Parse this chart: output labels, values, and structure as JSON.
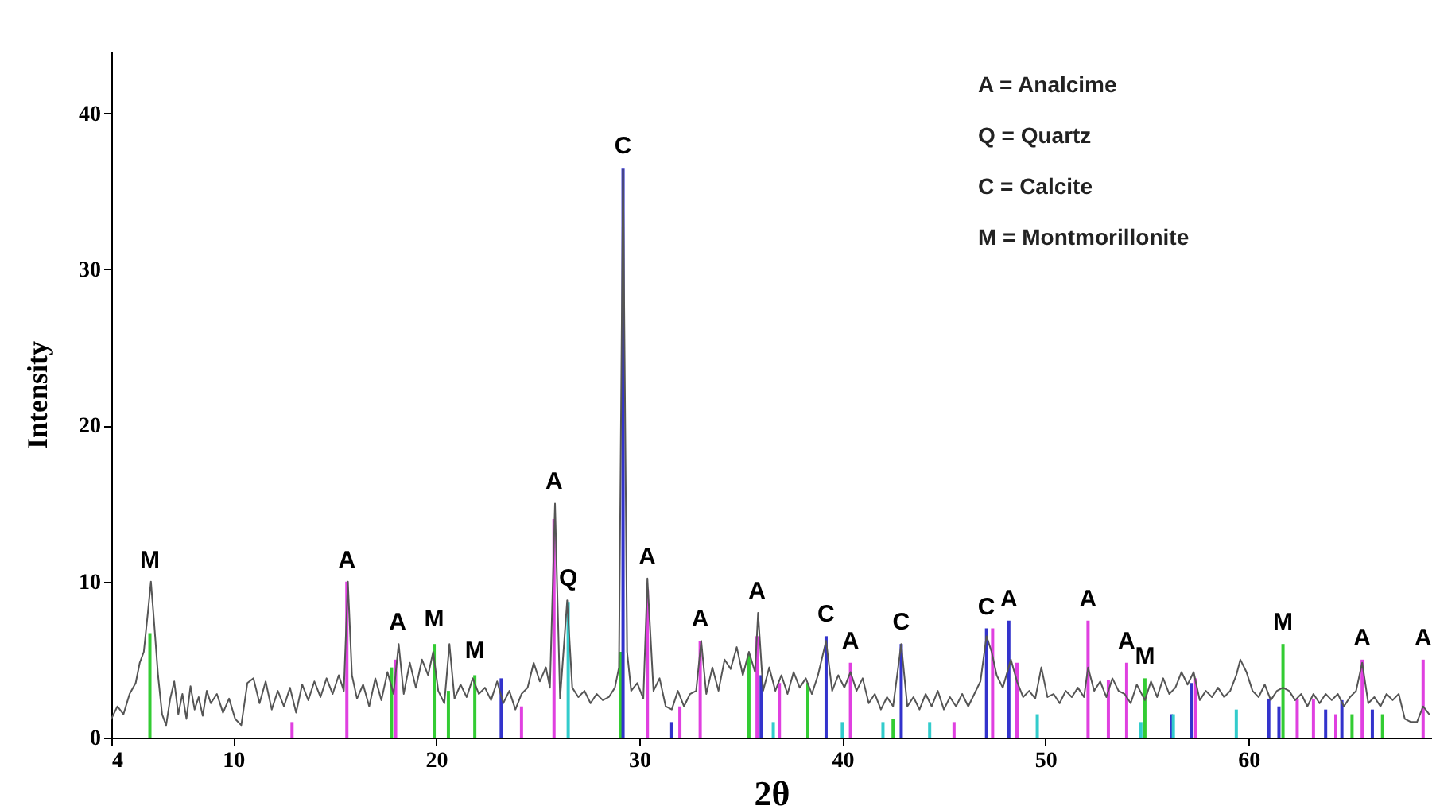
{
  "chart_data": {
    "type": "line",
    "xlabel": "2θ",
    "ylabel": "Intensity",
    "xlim": [
      4,
      69
    ],
    "ylim": [
      0,
      44
    ],
    "xticks": [
      4,
      10,
      20,
      30,
      40,
      50,
      60
    ],
    "yticks": [
      0,
      10,
      20,
      30,
      40
    ],
    "grid": false,
    "marker": "none",
    "line_style": "solid",
    "series": [
      {
        "color": "#555555",
        "x": [
          4.0,
          4.3,
          4.6,
          4.9,
          5.2,
          5.4,
          5.6,
          5.8,
          5.95,
          6.1,
          6.3,
          6.5,
          6.7,
          6.9,
          7.1,
          7.3,
          7.5,
          7.7,
          7.9,
          8.1,
          8.3,
          8.5,
          8.7,
          8.9,
          9.2,
          9.5,
          9.8,
          10.1,
          10.4,
          10.7,
          11.0,
          11.3,
          11.6,
          11.9,
          12.2,
          12.5,
          12.8,
          13.1,
          13.4,
          13.7,
          14.0,
          14.3,
          14.6,
          14.9,
          15.2,
          15.45,
          15.65,
          15.85,
          16.1,
          16.4,
          16.7,
          17.0,
          17.3,
          17.6,
          17.9,
          18.15,
          18.4,
          18.7,
          19.0,
          19.3,
          19.6,
          19.85,
          20.1,
          20.4,
          20.65,
          20.9,
          21.2,
          21.5,
          21.8,
          22.1,
          22.4,
          22.7,
          23.0,
          23.3,
          23.6,
          23.9,
          24.2,
          24.5,
          24.8,
          25.1,
          25.4,
          25.6,
          25.85,
          26.1,
          26.45,
          26.7,
          27.0,
          27.3,
          27.6,
          27.9,
          28.2,
          28.5,
          28.8,
          29.0,
          29.2,
          29.4,
          29.6,
          29.9,
          30.2,
          30.4,
          30.7,
          31.0,
          31.3,
          31.6,
          31.9,
          32.2,
          32.5,
          32.8,
          33.05,
          33.3,
          33.6,
          33.9,
          34.2,
          34.5,
          34.8,
          35.1,
          35.4,
          35.7,
          35.85,
          36.1,
          36.4,
          36.7,
          37.0,
          37.3,
          37.6,
          37.9,
          38.2,
          38.5,
          38.8,
          39.2,
          39.5,
          39.8,
          40.1,
          40.4,
          40.7,
          41.0,
          41.3,
          41.6,
          41.9,
          42.2,
          42.5,
          42.9,
          43.2,
          43.5,
          43.8,
          44.1,
          44.4,
          44.7,
          45.0,
          45.3,
          45.6,
          45.9,
          46.2,
          46.5,
          46.8,
          47.1,
          47.35,
          47.6,
          47.9,
          48.3,
          48.6,
          48.9,
          49.2,
          49.5,
          49.8,
          50.1,
          50.4,
          50.7,
          51.0,
          51.3,
          51.6,
          51.9,
          52.1,
          52.4,
          52.7,
          53.0,
          53.3,
          53.6,
          53.9,
          54.2,
          54.5,
          54.9,
          55.2,
          55.5,
          55.8,
          56.1,
          56.4,
          56.7,
          57.0,
          57.3,
          57.6,
          57.9,
          58.2,
          58.5,
          58.8,
          59.1,
          59.4,
          59.6,
          59.9,
          60.2,
          60.5,
          60.8,
          61.1,
          61.4,
          61.7,
          62.0,
          62.3,
          62.6,
          62.9,
          63.2,
          63.5,
          63.8,
          64.1,
          64.4,
          64.7,
          65.0,
          65.3,
          65.6,
          65.9,
          66.2,
          66.5,
          66.8,
          67.1,
          67.4,
          67.7,
          68.0,
          68.3,
          68.6,
          68.9
        ],
        "values": [
          1.2,
          2.0,
          1.5,
          2.8,
          3.5,
          4.8,
          5.5,
          8,
          10,
          7.5,
          4,
          1.5,
          0.8,
          2.5,
          3.6,
          1.5,
          2.8,
          1.2,
          3.3,
          1.8,
          2.6,
          1.4,
          3.0,
          2.2,
          2.8,
          1.6,
          2.5,
          1.2,
          0.8,
          3.5,
          3.8,
          2.2,
          3.6,
          1.8,
          3.0,
          2.0,
          3.2,
          1.6,
          3.4,
          2.4,
          3.6,
          2.6,
          3.8,
          2.8,
          4.0,
          3.0,
          10,
          4,
          2.5,
          3.4,
          2.0,
          3.8,
          2.4,
          4.2,
          2.8,
          6,
          2.8,
          4.8,
          3.2,
          5.0,
          4.0,
          5.5,
          3.0,
          2.2,
          6.0,
          2.5,
          3.4,
          2.6,
          3.8,
          2.8,
          3.2,
          2.4,
          3.6,
          2.2,
          3.0,
          1.8,
          2.8,
          3.2,
          4.8,
          3.6,
          4.5,
          3.2,
          15,
          2.5,
          8.8,
          3.2,
          2.6,
          3.0,
          2.2,
          2.8,
          2.4,
          2.6,
          3.2,
          4.5,
          36.4,
          5.5,
          3.0,
          3.5,
          2.5,
          10.2,
          3.0,
          3.8,
          2.0,
          1.8,
          3.0,
          2.0,
          2.8,
          3.0,
          6.2,
          2.8,
          4.5,
          3.0,
          5.0,
          4.4,
          5.8,
          4.0,
          5.5,
          4.2,
          8.0,
          3.0,
          4.5,
          3.0,
          4.0,
          2.8,
          4.2,
          3.2,
          3.8,
          2.8,
          4.0,
          6.2,
          3.0,
          4.0,
          3.2,
          4.2,
          3.0,
          3.8,
          2.2,
          2.8,
          1.8,
          2.6,
          2.0,
          6.0,
          2.0,
          2.6,
          1.8,
          2.8,
          2.0,
          3.0,
          1.8,
          2.6,
          2.0,
          2.8,
          2.0,
          2.8,
          3.6,
          6.5,
          5.5,
          4.0,
          3.2,
          5.0,
          3.6,
          2.6,
          3.0,
          2.5,
          4.5,
          2.6,
          2.8,
          2.2,
          3.0,
          2.6,
          3.2,
          2.6,
          4.5,
          3.0,
          3.6,
          2.6,
          3.8,
          3.0,
          2.8,
          2.2,
          3.4,
          2.4,
          3.6,
          2.6,
          3.8,
          2.8,
          3.2,
          4.2,
          3.4,
          4.2,
          2.4,
          3.0,
          2.6,
          3.2,
          2.6,
          3.0,
          4.0,
          5.0,
          4.2,
          3.0,
          2.6,
          3.4,
          2.4,
          3.0,
          3.2,
          3.0,
          2.4,
          2.8,
          2.0,
          2.8,
          2.2,
          2.8,
          2.4,
          2.8,
          2.0,
          2.6,
          3.0,
          4.8,
          2.2,
          2.6,
          2.0,
          2.8,
          2.4,
          2.8,
          1.2,
          1.0,
          1.0,
          2.0,
          1.5
        ]
      },
      {
        "type": "bar",
        "color": "#33cc33",
        "x": [
          5.9,
          17.8,
          19.9,
          20.6,
          21.9,
          29.1,
          35.4,
          38.3,
          42.5,
          48.2,
          54.9,
          61.7,
          65.1,
          66.6
        ],
        "values": [
          6.7,
          4.5,
          6,
          3,
          4,
          5.5,
          5.3,
          3.5,
          1.2,
          null,
          3.8,
          6,
          1.5,
          1.5
        ]
      },
      {
        "type": "bar",
        "color": "#e040e0",
        "x": [
          12.9,
          15.6,
          18.0,
          24.2,
          25.8,
          30.4,
          32.0,
          33.0,
          35.8,
          36.9,
          40.4,
          45.5,
          47.4,
          48.6,
          52.1,
          53.1,
          54.0,
          57.4,
          62.4,
          63.2,
          64.3,
          65.6,
          68.6
        ],
        "values": [
          1,
          10,
          5,
          2,
          14,
          9.5,
          2,
          6.2,
          6.5,
          3.5,
          4.8,
          1,
          7,
          4.8,
          7.5,
          3.7,
          4.8,
          3.8,
          2.5,
          2.5,
          1.5,
          5,
          5
        ]
      },
      {
        "type": "bar",
        "color": "#3333cc",
        "x": [
          23.2,
          29.2,
          31.6,
          36.0,
          39.2,
          42.9,
          47.1,
          48.2,
          56.2,
          57.2,
          61.0,
          61.5,
          63.8,
          64.6,
          66.1
        ],
        "values": [
          3.8,
          36.5,
          1,
          4,
          6.5,
          6,
          7,
          7.5,
          1.5,
          3.5,
          2.5,
          2,
          1.8,
          2.4,
          1.8
        ]
      },
      {
        "type": "bar",
        "color": "#33cccc",
        "x": [
          26.5,
          36.6,
          40.0,
          42.0,
          44.3,
          49.6,
          54.7,
          56.3,
          59.4
        ],
        "values": [
          8.7,
          1,
          1,
          1,
          1,
          1.5,
          1,
          1.5,
          1.8
        ]
      }
    ],
    "annotations": [
      {
        "text": "M",
        "x": 5.9,
        "y": 10
      },
      {
        "text": "A",
        "x": 15.6,
        "y": 10
      },
      {
        "text": "A",
        "x": 18.1,
        "y": 6
      },
      {
        "text": "M",
        "x": 19.9,
        "y": 6.2
      },
      {
        "text": "M",
        "x": 21.9,
        "y": 4.2
      },
      {
        "text": "A",
        "x": 25.8,
        "y": 15
      },
      {
        "text": "Q",
        "x": 26.5,
        "y": 8.8
      },
      {
        "text": "C",
        "x": 29.2,
        "y": 36.5
      },
      {
        "text": "A",
        "x": 30.4,
        "y": 10.2
      },
      {
        "text": "A",
        "x": 33.0,
        "y": 6.2
      },
      {
        "text": "A",
        "x": 35.8,
        "y": 8
      },
      {
        "text": "C",
        "x": 39.2,
        "y": 6.5
      },
      {
        "text": "A",
        "x": 40.4,
        "y": 4.8
      },
      {
        "text": "C",
        "x": 42.9,
        "y": 6
      },
      {
        "text": "C",
        "x": 47.1,
        "y": 7
      },
      {
        "text": "A",
        "x": 48.2,
        "y": 7.5
      },
      {
        "text": "A",
        "x": 52.1,
        "y": 7.5
      },
      {
        "text": "A",
        "x": 54.0,
        "y": 4.8
      },
      {
        "text": "M",
        "x": 54.9,
        "y": 3.8
      },
      {
        "text": "M",
        "x": 61.7,
        "y": 6
      },
      {
        "text": "A",
        "x": 65.6,
        "y": 5
      },
      {
        "text": "A",
        "x": 68.6,
        "y": 5
      },
      "A = Analcime",
      "Q = Quartz",
      "C = Calcite",
      "M = Montmorillonite"
    ]
  }
}
